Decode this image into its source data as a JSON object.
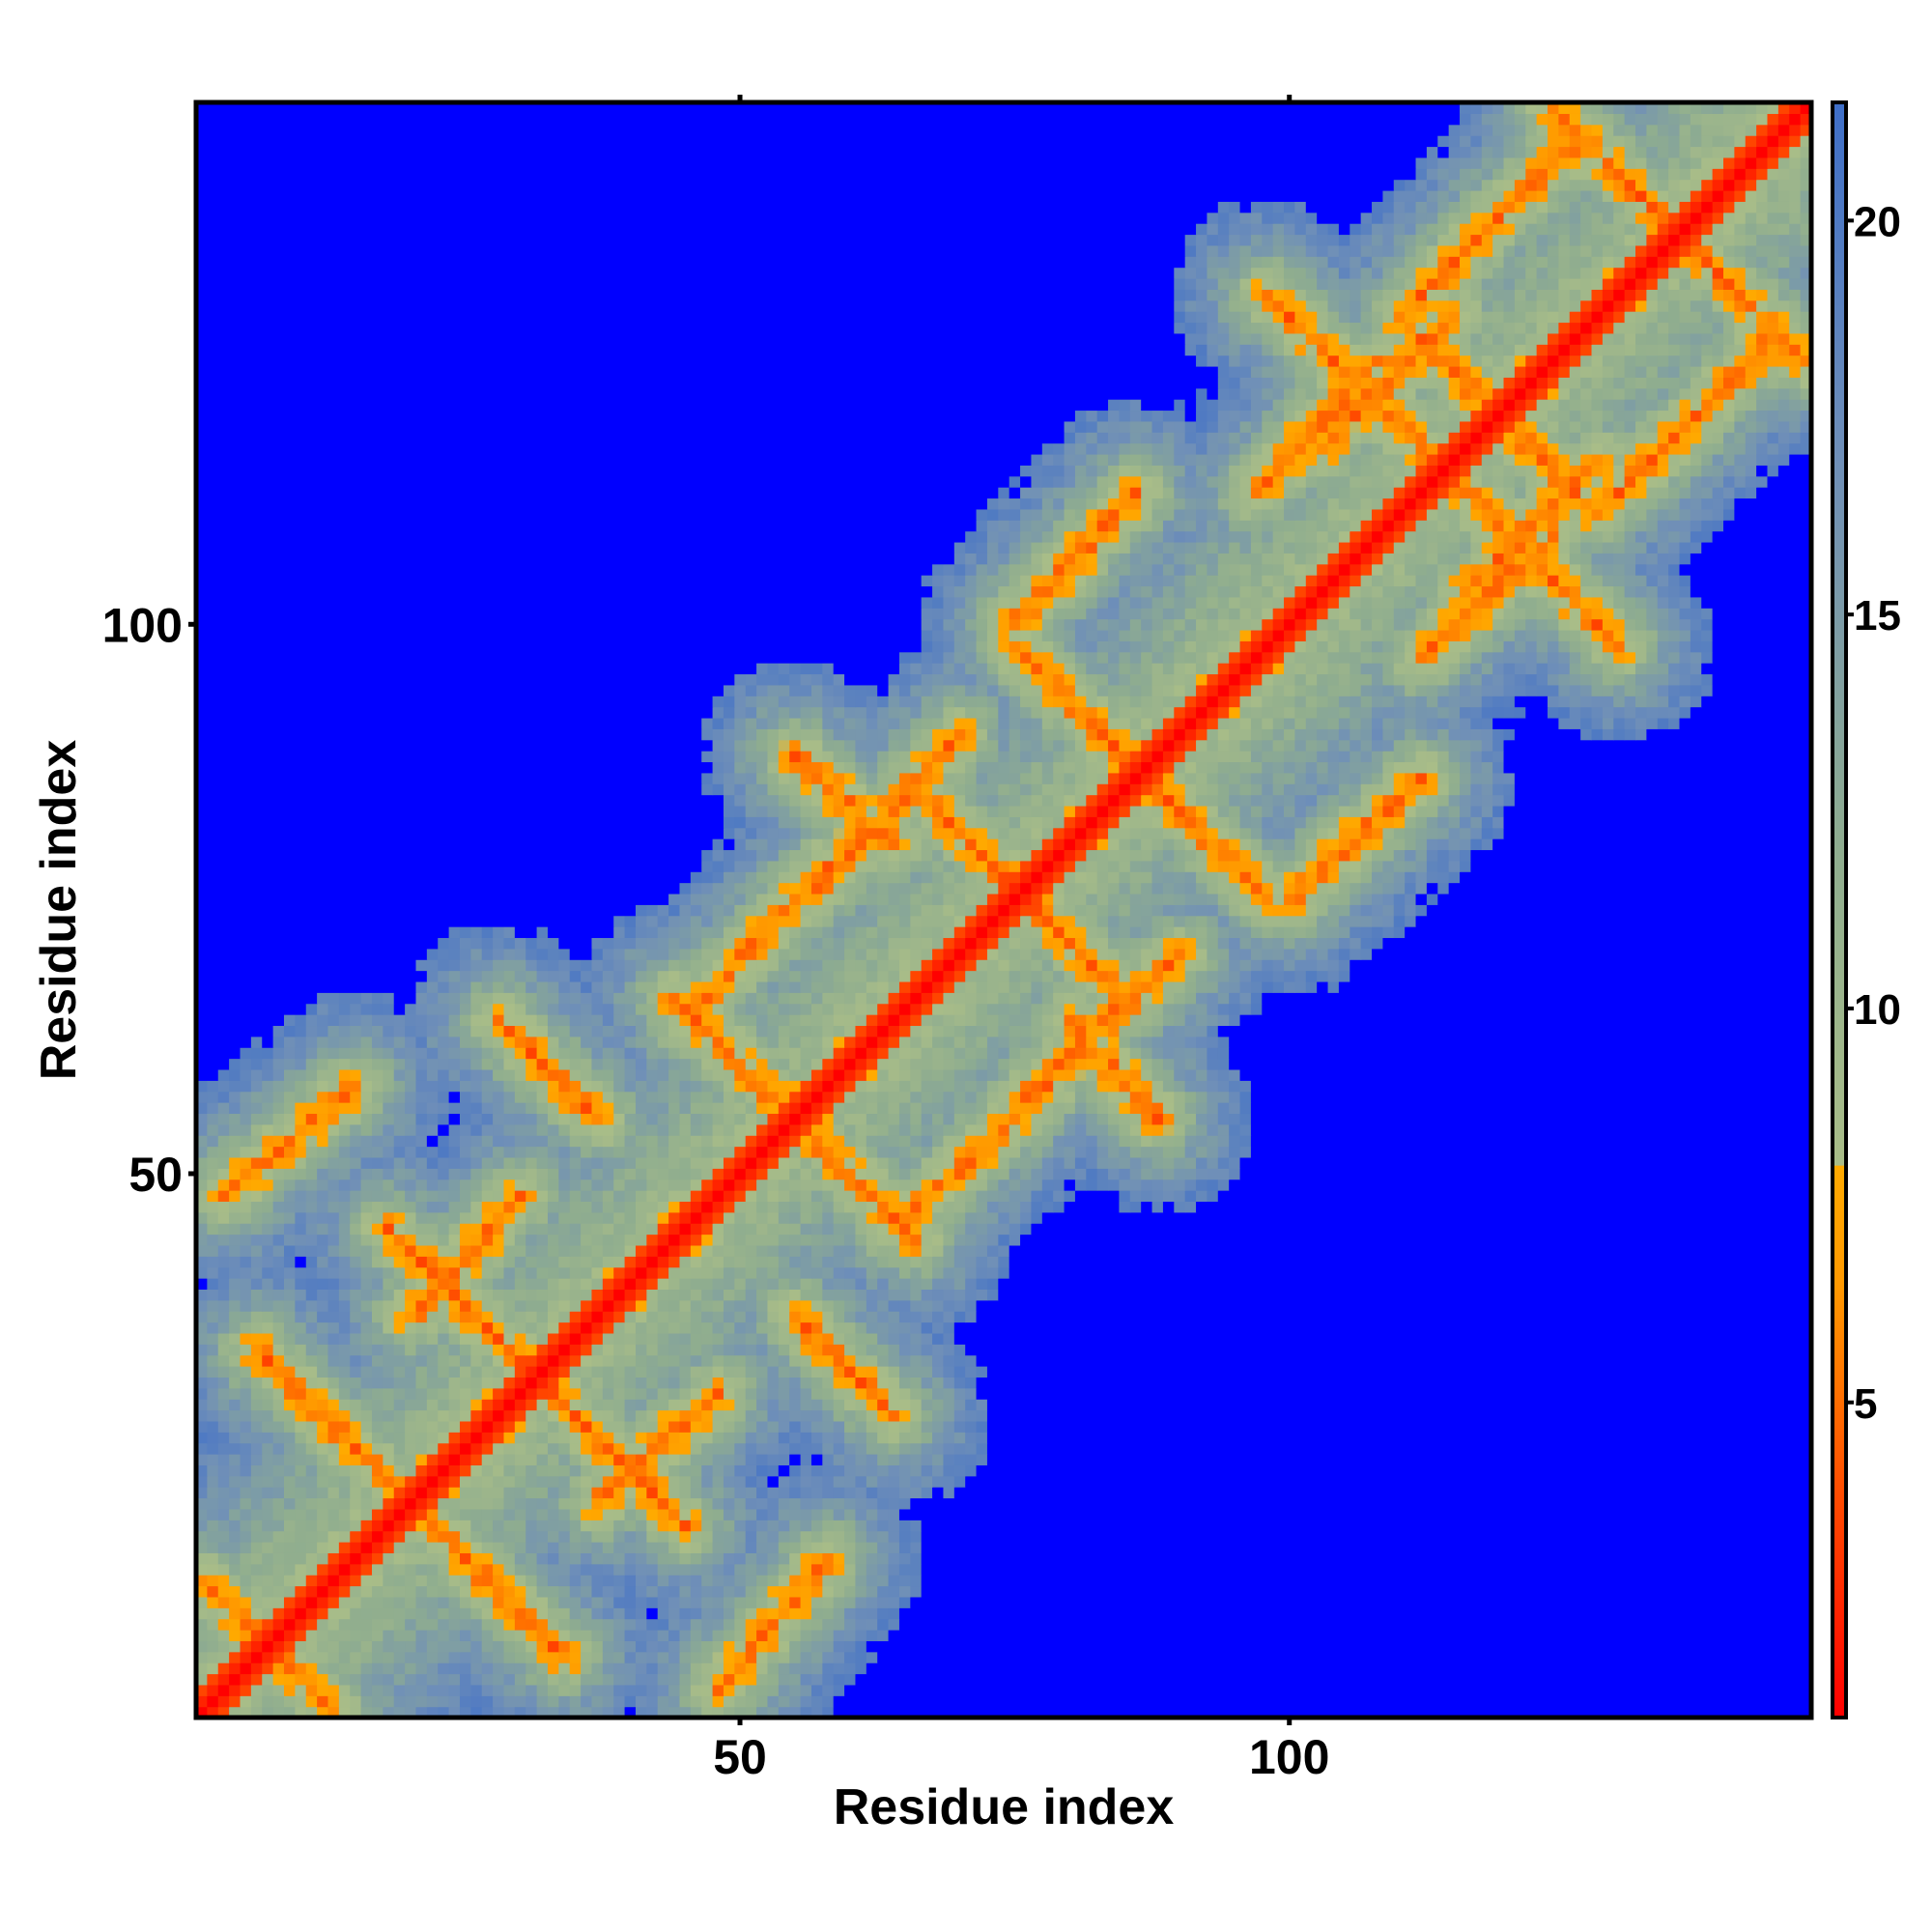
{
  "chart_data": {
    "type": "heatmap",
    "title": "",
    "xlabel": "Residue index",
    "ylabel": "Residue index",
    "n_residues": 147,
    "xlim": [
      1,
      147
    ],
    "ylim": [
      1,
      147
    ],
    "x_ticks": [
      {
        "value": 50,
        "label": "50"
      },
      {
        "value": 100,
        "label": "100"
      }
    ],
    "y_ticks": [
      {
        "value": 50,
        "label": "50"
      },
      {
        "value": 100,
        "label": "100"
      }
    ],
    "colorbar": {
      "range": [
        1,
        21.5
      ],
      "ticks": [
        {
          "value": 5,
          "label": "5"
        },
        {
          "value": 10,
          "label": "10"
        },
        {
          "value": 15,
          "label": "15"
        },
        {
          "value": 20,
          "label": "20"
        }
      ],
      "stops": [
        {
          "value": 1,
          "color": "#ff0000"
        },
        {
          "value": 4,
          "color": "#ff5000"
        },
        {
          "value": 6.5,
          "color": "#ff9900"
        },
        {
          "value": 8,
          "color": "#ffaa00"
        },
        {
          "value": 8.01,
          "color": "#a9bd88"
        },
        {
          "value": 12,
          "color": "#8fad8f"
        },
        {
          "value": 17,
          "color": "#6f8fb8"
        },
        {
          "value": 21.5,
          "color": "#3f6fc8"
        }
      ],
      "cutoff": 20,
      "over_cutoff_color": "#0000ff"
    },
    "grid": false,
    "contact_bands": {
      "diagonal": [
        [
          1,
          147
        ]
      ],
      "antiparallel_contacts": [
        {
          "i": [
            1,
            13
          ],
          "j": [
            13,
            1
          ]
        },
        {
          "i": [
            6,
            19
          ],
          "j": [
            34,
            21
          ]
        },
        {
          "i": [
            18,
            45
          ],
          "j": [
            45,
            18
          ]
        },
        {
          "i": [
            28,
            37
          ],
          "j": [
            64,
            55
          ]
        },
        {
          "i": [
            44,
            66
          ],
          "j": [
            66,
            44
          ]
        },
        {
          "i": [
            55,
            64
          ],
          "j": [
            88,
            80
          ]
        },
        {
          "i": [
            66,
            85
          ],
          "j": [
            85,
            66
          ]
        },
        {
          "i": [
            75,
            98
          ],
          "j": [
            98,
            75
          ]
        },
        {
          "i": [
            98,
            130
          ],
          "j": [
            130,
            98
          ]
        },
        {
          "i": [
            110,
            118
          ],
          "j": [
            128,
            120
          ]
        },
        {
          "i": [
            124,
            147
          ],
          "j": [
            147,
            124
          ]
        }
      ],
      "parallel_contacts": [
        {
          "i": [
            3,
            15
          ],
          "j": [
            48,
            58
          ]
        },
        {
          "i": [
            20,
            30
          ],
          "j": [
            37,
            48
          ]
        },
        {
          "i": [
            45,
            58
          ],
          "j": [
            64,
            78
          ]
        },
        {
          "i": [
            57,
            70
          ],
          "j": [
            76,
            90
          ]
        },
        {
          "i": [
            75,
            86
          ],
          "j": [
            100,
            112
          ]
        },
        {
          "i": [
            97,
            108
          ],
          "j": [
            112,
            124
          ]
        },
        {
          "i": [
            112,
            126
          ],
          "j": [
            130,
            144
          ]
        },
        {
          "i": [
            103,
            115
          ],
          "j": [
            116,
            128
          ]
        }
      ]
    }
  }
}
